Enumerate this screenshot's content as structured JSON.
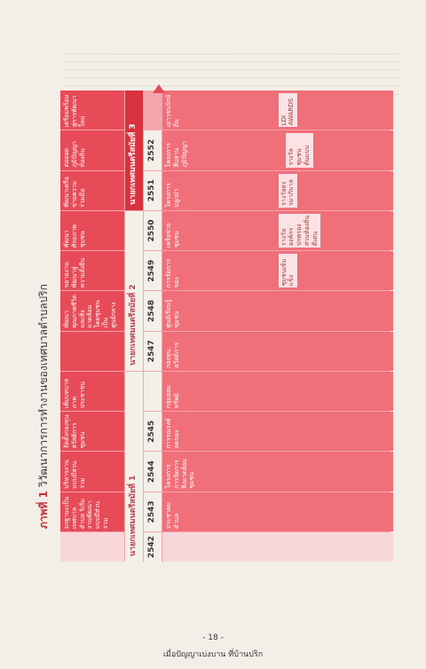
{
  "caption": {
    "figure_label": "ภาพที่ 1",
    "text": "วิวัฒนาการการทำงานของเทศบาลตำบลปริก"
  },
  "eras": [
    {
      "label": "นายกเทศมนตรีสมัยที่ 1"
    },
    {
      "label": "นายกเทศมนตรีสมัยที่ 2"
    },
    {
      "label": "นายกเทศมนตรีสมัยที่ 3"
    }
  ],
  "years": [
    "2542",
    "2543",
    "2544",
    "2545",
    "2547",
    "2548",
    "2549",
    "2550",
    "2551",
    "2552"
  ],
  "headers": [
    "ยกฐานะเป็นเทศบาลตำบล ริเริ่มงานพัฒนาแบบมีส่วนร่วม",
    "บริหารงานแบบมีส่วนร่วม",
    "จัดตั้งกองทุนสวัสดิการชุมชน",
    "เพิ่มบทบาทภาคประชาชน",
    "พัฒนาคุณภาพชีวิตและสิ่งแวดล้อมโดยชุมชนเป็นศูนย์กลาง",
    "ขยายงานพัฒนาสู่ความยั่งยืน",
    "พัฒนาศักยภาพชุมชน",
    "พัฒนาเครือข่ายความร่วมมือ",
    "ต่อยอดภูมิปัญญาท้องถิ่น",
    "เตรียมพร้อมสู่การพัฒนาใหม่"
  ],
  "activities": [
    "ประชาคมตำบล",
    "โครงการการจัดการสิ่งแวดล้อมชุมชน",
    "การรณรงค์ลดขยะ",
    "กลุ่มออมทรัพย์",
    "กองทุนสวัสดิการ",
    "ศูนย์เรียนรู้ชุมชน",
    "การจัดการขยะ",
    "เครือข่ายชุมชน",
    "โครงการปลูกป่า",
    "โครงการสืบสานภูมิปัญญา",
    "เยาวชนรักษ์ถิ่น"
  ],
  "outcomes": [
    "ชุมชนเข้มแข็ง",
    "รางวัลองค์กรปกครองส่วนท้องถิ่นดีเด่น",
    "รางวัลธรรมาภิบาล",
    "รางวัลชุมชนต้นแบบ",
    "LDI AWARDS"
  ],
  "footer": {
    "page": "- 18 -",
    "title": "เมื่อปัญญาเบ่งบาน ที่บ้านปริก"
  }
}
